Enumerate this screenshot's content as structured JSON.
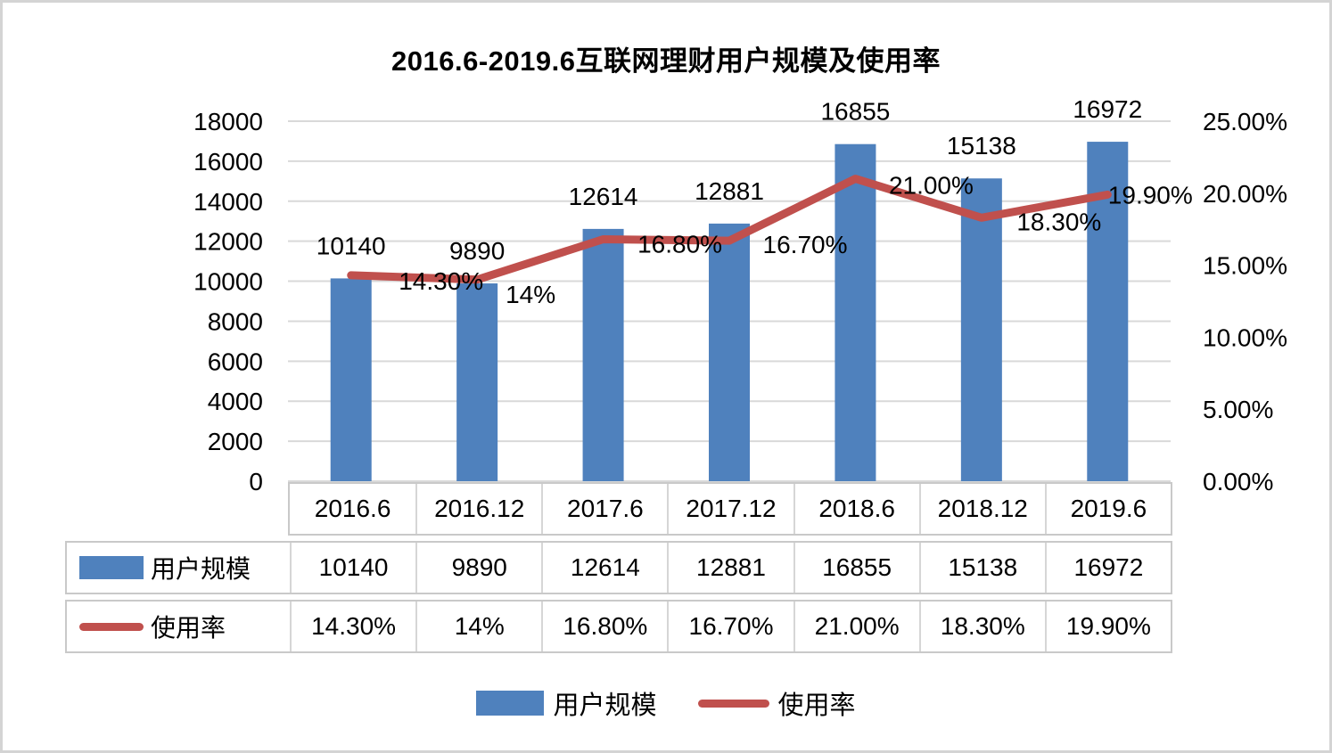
{
  "title": "2016.6-2019.6互联网理财用户规模及使用率",
  "chart_data": {
    "type": "combo",
    "subtypes": [
      "bar",
      "line"
    ],
    "title": "2016.6-2019.6互联网理财用户规模及使用率",
    "categories": [
      "2016.6",
      "2016.12",
      "2017.6",
      "2017.12",
      "2018.6",
      "2018.12",
      "2019.6"
    ],
    "series": [
      {
        "name": "用户规模",
        "type": "bar",
        "axis": "left",
        "color": "#4F81BD",
        "values": [
          10140,
          9890,
          12614,
          12881,
          16855,
          15138,
          16972
        ],
        "labels": [
          "10140",
          "9890",
          "12614",
          "12881",
          "16855",
          "15138",
          "16972"
        ]
      },
      {
        "name": "使用率",
        "type": "line",
        "axis": "right",
        "color": "#C0504D",
        "values": [
          14.3,
          14,
          16.8,
          16.7,
          21,
          18.3,
          19.9
        ],
        "labels": [
          "14.30%",
          "14%",
          "16.80%",
          "16.70%",
          "21.00%",
          "18.30%",
          "19.90%"
        ]
      }
    ],
    "left_axis": {
      "min": 0,
      "max": 18000,
      "step": 2000,
      "tick_labels": [
        "0",
        "2000",
        "4000",
        "6000",
        "8000",
        "10000",
        "12000",
        "14000",
        "16000",
        "18000"
      ]
    },
    "right_axis": {
      "min": 0,
      "max": 25,
      "step": 5,
      "tick_labels": [
        "0.00%",
        "5.00%",
        "10.00%",
        "15.00%",
        "20.00%",
        "25.00%"
      ]
    },
    "grid": true,
    "data_table": true,
    "legend_position": "bottom",
    "legend": [
      "用户规模",
      "使用率"
    ],
    "colors": {
      "bar": "#4F81BD",
      "line": "#C0504D",
      "gridline": "#D9D9D9",
      "table_border": "#C9C9C9"
    }
  }
}
